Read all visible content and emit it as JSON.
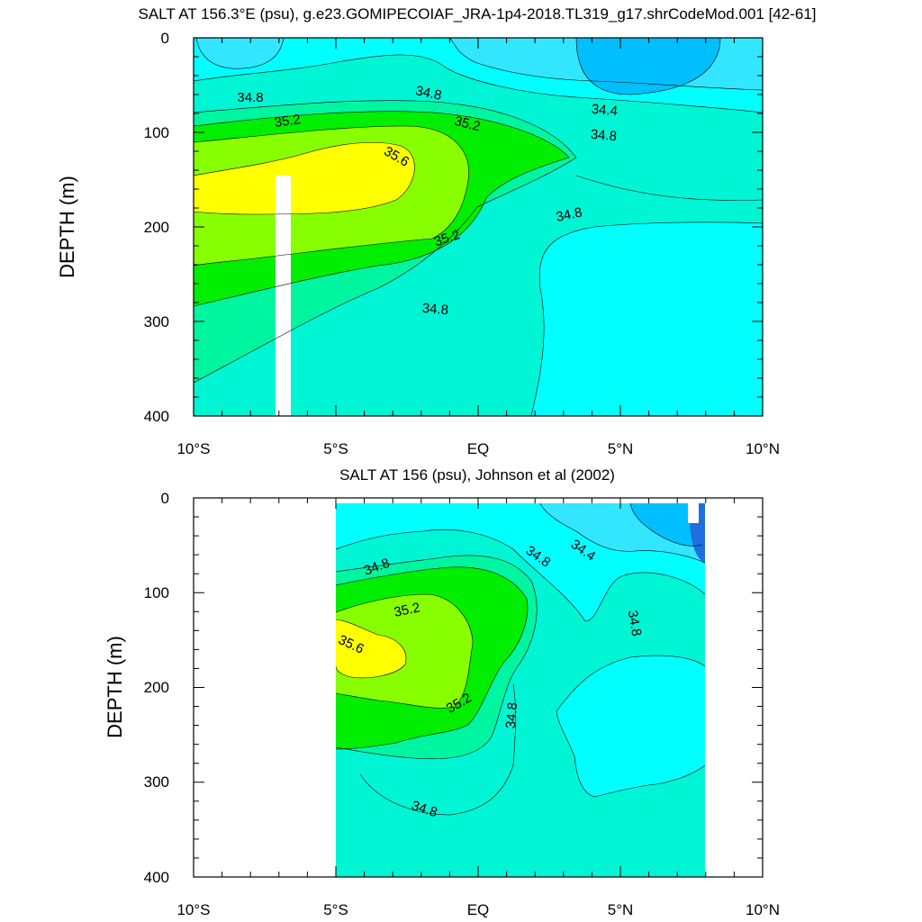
{
  "colors": {
    "lt34_0": "#1e6fe0",
    "b34_0": "#00bfff",
    "b34_4": "#33e6ff",
    "b34_6": "#00ffff",
    "b34_8": "#00f5d4",
    "b35_0": "#00f5a0",
    "b35_2": "#00ee00",
    "b35_4": "#88ff00",
    "b35_6": "#ffff00",
    "missing": "#ffffff"
  },
  "chart_data": [
    {
      "type": "contour",
      "title": "SALT AT 156.3°E (psu), g.e23.GOMIPECOIAF_JRA-1p4-2018.TL319_g17.shrCodeMod.001 [42-61]",
      "ylabel": "DEPTH (m)",
      "xlabel": "",
      "xlim": [
        -10,
        10
      ],
      "ylim": [
        400,
        0
      ],
      "x_ticks": [
        "10°S",
        "5°S",
        "EQ",
        "5°N",
        "10°N"
      ],
      "y_ticks": [
        "0",
        "100",
        "200",
        "300",
        "400"
      ],
      "contour_labels": [
        "34.8",
        "34.8",
        "34.4",
        "35.2",
        "35.2",
        "34.8",
        "35.6",
        "34.8",
        "35.2",
        "34.8"
      ],
      "data_range_lat": [
        -10,
        10
      ],
      "salinity_levels": [
        34.4,
        34.6,
        34.8,
        35.0,
        35.2,
        35.4,
        35.6
      ]
    },
    {
      "type": "contour",
      "title": "SALT AT 156 (psu), Johnson et al (2002)",
      "ylabel": "DEPTH (m)",
      "xlabel": "",
      "xlim": [
        -10,
        10
      ],
      "ylim": [
        400,
        0
      ],
      "x_ticks": [
        "10°S",
        "5°S",
        "EQ",
        "5°N",
        "10°N"
      ],
      "y_ticks": [
        "0",
        "100",
        "200",
        "300",
        "400"
      ],
      "contour_labels": [
        "34.8",
        "34.8",
        "34.4",
        "35.2",
        "34.8",
        "35.6",
        "35.2",
        "34.8",
        "34.8"
      ],
      "data_range_lat": [
        -5,
        8
      ],
      "salinity_levels": [
        34.0,
        34.4,
        34.6,
        34.8,
        35.0,
        35.2,
        35.4,
        35.6
      ]
    }
  ]
}
